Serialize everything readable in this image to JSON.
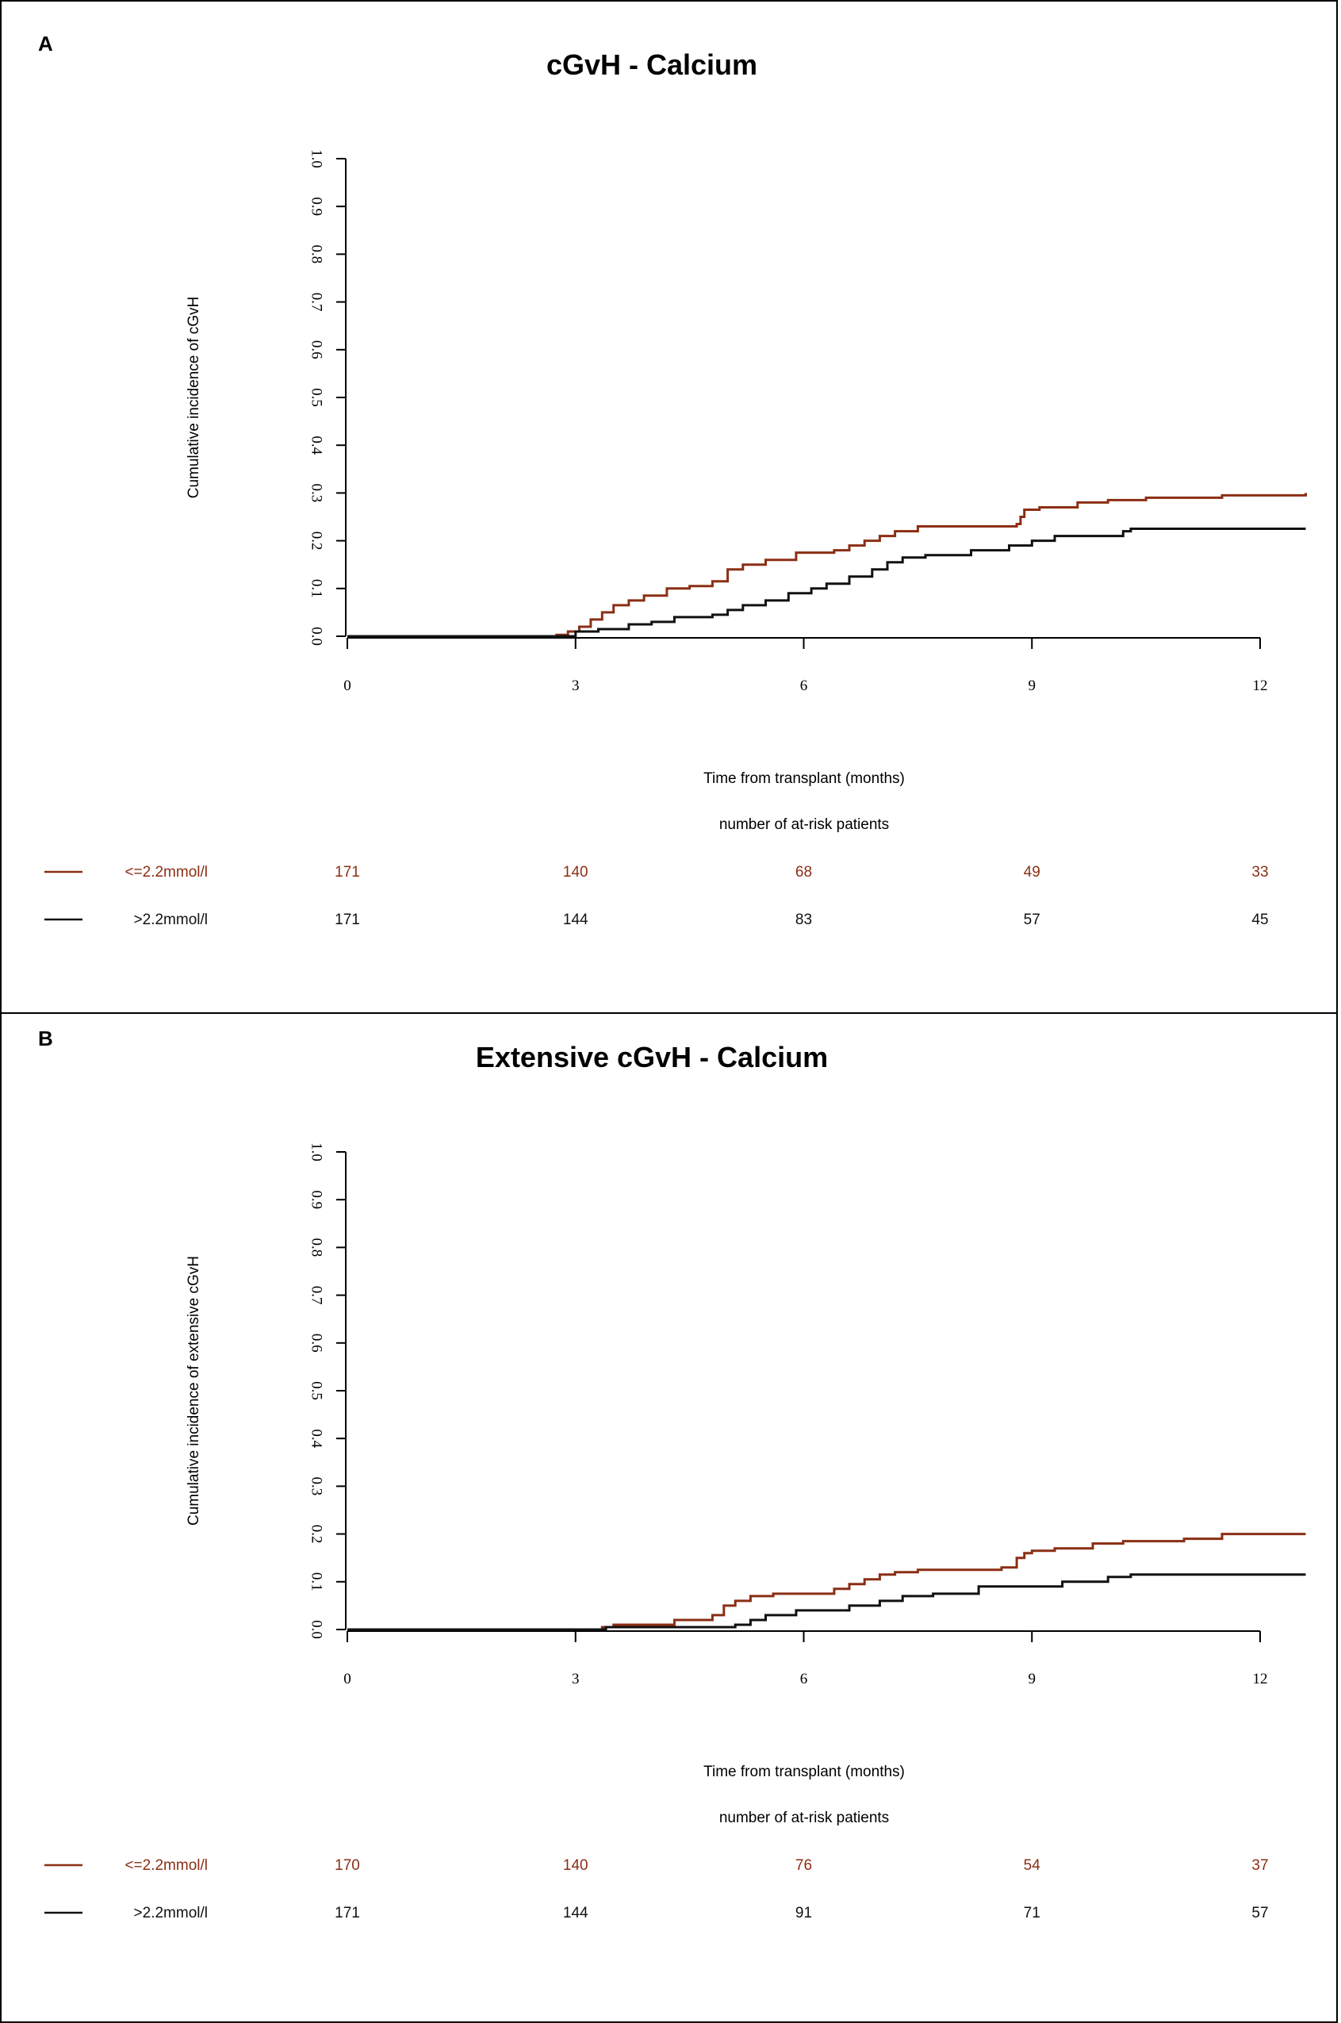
{
  "colors": {
    "low": "#8B2E14",
    "high": "#111111",
    "axis": "#000000"
  },
  "chart_data": [
    {
      "type": "line",
      "step": true,
      "panel_label": "A",
      "title": "cGvH - Calcium",
      "xlabel": "Time from transplant (months)",
      "ylabel": "Cumulative incidence of cGvH",
      "xlim": [
        0,
        12
      ],
      "ylim": [
        0,
        1
      ],
      "x_ticks": [
        "0",
        "3",
        "6",
        "9",
        "12"
      ],
      "y_ticks": [
        "0.0",
        "0.1",
        "0.2",
        "0.3",
        "0.4",
        "0.5",
        "0.6",
        "0.7",
        "0.8",
        "0.9",
        "1.0"
      ],
      "series": [
        {
          "name": "<=2.2mmol/l",
          "color_key": "low",
          "x": [
            0,
            2.75,
            2.9,
            3.05,
            3.2,
            3.35,
            3.5,
            3.7,
            3.9,
            4.2,
            4.5,
            4.8,
            5.0,
            5.2,
            5.5,
            5.9,
            6.4,
            6.6,
            6.8,
            7.0,
            7.2,
            7.5,
            8.0,
            8.5,
            8.8,
            8.85,
            8.9,
            9.1,
            9.6,
            10.0,
            10.5,
            11.0,
            11.5,
            12.6
          ],
          "y": [
            0,
            0.003,
            0.01,
            0.02,
            0.035,
            0.05,
            0.065,
            0.075,
            0.085,
            0.1,
            0.105,
            0.115,
            0.14,
            0.15,
            0.16,
            0.175,
            0.18,
            0.19,
            0.2,
            0.21,
            0.22,
            0.23,
            0.23,
            0.23,
            0.235,
            0.25,
            0.265,
            0.27,
            0.28,
            0.285,
            0.29,
            0.29,
            0.295,
            0.3
          ]
        },
        {
          "name": ">2.2mmol/l",
          "color_key": "high",
          "x": [
            0,
            3.0,
            3.3,
            3.7,
            4.0,
            4.3,
            4.8,
            5.0,
            5.2,
            5.5,
            5.8,
            6.1,
            6.3,
            6.6,
            6.9,
            7.1,
            7.3,
            7.6,
            8.2,
            8.7,
            9.0,
            9.3,
            10.2,
            10.3,
            12.6
          ],
          "y": [
            0,
            0.01,
            0.015,
            0.025,
            0.03,
            0.04,
            0.045,
            0.055,
            0.065,
            0.075,
            0.09,
            0.1,
            0.11,
            0.125,
            0.14,
            0.155,
            0.165,
            0.17,
            0.18,
            0.19,
            0.2,
            0.21,
            0.22,
            0.225,
            0.225
          ]
        }
      ],
      "risk_table": {
        "title": "number of at-risk patients",
        "rows": [
          {
            "label": "<=2.2mmol/l",
            "color_key": "low",
            "counts": [
              "171",
              "140",
              "68",
              "49",
              "33"
            ]
          },
          {
            "label": ">2.2mmol/l",
            "color_key": "high",
            "counts": [
              "171",
              "144",
              "83",
              "57",
              "45"
            ]
          }
        ]
      }
    },
    {
      "type": "line",
      "step": true,
      "panel_label": "B",
      "title": "Extensive cGvH - Calcium",
      "xlabel": "Time from transplant (months)",
      "ylabel": "Cumulative incidence of extensive cGvH",
      "xlim": [
        0,
        12
      ],
      "ylim": [
        0,
        1
      ],
      "x_ticks": [
        "0",
        "3",
        "6",
        "9",
        "12"
      ],
      "y_ticks": [
        "0.0",
        "0.1",
        "0.2",
        "0.3",
        "0.4",
        "0.5",
        "0.6",
        "0.7",
        "0.8",
        "0.9",
        "1.0"
      ],
      "series": [
        {
          "name": "<=2.2mmol/l",
          "color_key": "low",
          "x": [
            0,
            3.35,
            3.5,
            4.3,
            4.8,
            4.95,
            5.1,
            5.3,
            5.6,
            6.4,
            6.6,
            6.8,
            7.0,
            7.2,
            7.5,
            8.0,
            8.6,
            8.8,
            8.9,
            9.0,
            9.3,
            9.8,
            10.2,
            11.0,
            11.5,
            12.6
          ],
          "y": [
            0,
            0.005,
            0.01,
            0.02,
            0.03,
            0.05,
            0.06,
            0.07,
            0.075,
            0.085,
            0.095,
            0.105,
            0.115,
            0.12,
            0.125,
            0.125,
            0.13,
            0.15,
            0.16,
            0.165,
            0.17,
            0.18,
            0.185,
            0.19,
            0.2,
            0.2
          ]
        },
        {
          "name": ">2.2mmol/l",
          "color_key": "high",
          "x": [
            0,
            3.4,
            5.1,
            5.3,
            5.5,
            5.9,
            6.6,
            7.0,
            7.3,
            7.7,
            8.3,
            9.4,
            10.0,
            10.3,
            12.6
          ],
          "y": [
            0,
            0.005,
            0.01,
            0.02,
            0.03,
            0.04,
            0.05,
            0.06,
            0.07,
            0.075,
            0.09,
            0.1,
            0.11,
            0.115,
            0.115
          ]
        }
      ],
      "risk_table": {
        "title": "number of at-risk patients",
        "rows": [
          {
            "label": "<=2.2mmol/l",
            "color_key": "low",
            "counts": [
              "170",
              "140",
              "76",
              "54",
              "37"
            ]
          },
          {
            "label": ">2.2mmol/l",
            "color_key": "high",
            "counts": [
              "171",
              "144",
              "91",
              "71",
              "57"
            ]
          }
        ]
      }
    }
  ]
}
